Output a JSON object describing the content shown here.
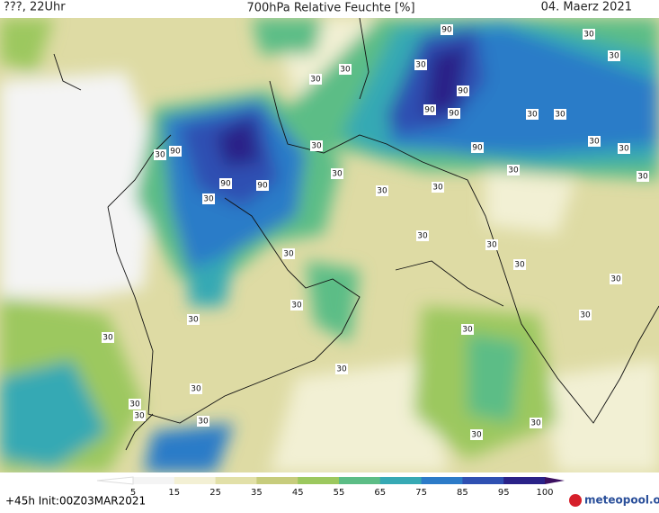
{
  "header": {
    "left": "???, 22Uhr",
    "title": "700hPa Relative Feuchte [%]",
    "right": "04. Maerz 2021"
  },
  "contour_labels": [
    90,
    90,
    90,
    90,
    90,
    90,
    90,
    90,
    30,
    30,
    30,
    30,
    30,
    30,
    30,
    30,
    30,
    30,
    30,
    30,
    30,
    30,
    30,
    30,
    30,
    30,
    30,
    30,
    30,
    30,
    30,
    30,
    30,
    30,
    30,
    30,
    30,
    30,
    30,
    30,
    30,
    30
  ],
  "colorbar": {
    "ticks": [
      5,
      15,
      25,
      35,
      45,
      55,
      65,
      75,
      85,
      95,
      100
    ],
    "colors": [
      "#f4f4f4",
      "#f3f0d4",
      "#e2e0a8",
      "#c7cc7c",
      "#9cc85e",
      "#5cbd86",
      "#36a9b4",
      "#2c7bc8",
      "#2f50b2",
      "#2a2288"
    ]
  },
  "footer": {
    "left": "+45h Init:00Z03MAR2021",
    "logo": "meteopool.org"
  }
}
